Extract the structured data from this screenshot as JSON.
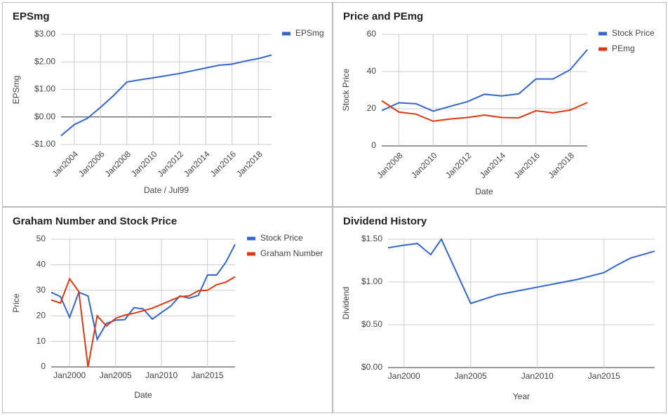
{
  "chart_data": [
    {
      "type": "line",
      "title": "EPSmg",
      "xlabel": "Date / Jul99",
      "ylabel": "EPSmg",
      "legend": "right",
      "grid": true,
      "x": [
        2003,
        2004,
        2005,
        2006,
        2007,
        2008,
        2009,
        2010,
        2011,
        2012,
        2013,
        2014,
        2015,
        2016,
        2017,
        2018,
        2019
      ],
      "xlim": [
        2003,
        2019
      ],
      "xticks": [
        {
          "value": 2004,
          "label": "Jan2004"
        },
        {
          "value": 2006,
          "label": "Jan2006"
        },
        {
          "value": 2008,
          "label": "Jan2008"
        },
        {
          "value": 2010,
          "label": "Jan2010"
        },
        {
          "value": 2012,
          "label": "Jan2012"
        },
        {
          "value": 2014,
          "label": "Jan2014"
        },
        {
          "value": 2016,
          "label": "Jan2016"
        },
        {
          "value": 2018,
          "label": "Jan2018"
        }
      ],
      "ylim": [
        -1,
        3
      ],
      "yticks": [
        {
          "value": -1,
          "label": "-$1.00"
        },
        {
          "value": 0,
          "label": "$0.00"
        },
        {
          "value": 1,
          "label": "$1.00"
        },
        {
          "value": 2,
          "label": "$2.00"
        },
        {
          "value": 3,
          "label": "$3.00"
        }
      ],
      "series": [
        {
          "name": "EPSmg",
          "color": "#3366cc",
          "values": [
            -0.68,
            -0.28,
            -0.05,
            0.35,
            0.78,
            1.27,
            1.35,
            1.42,
            1.5,
            1.58,
            1.68,
            1.78,
            1.88,
            1.92,
            2.03,
            2.12,
            2.25
          ]
        }
      ]
    },
    {
      "type": "line",
      "title": "Price and PEmg",
      "xlabel": "Date",
      "ylabel": "Stock Price",
      "legend": "right",
      "grid": true,
      "x": [
        2007,
        2008,
        2009,
        2010,
        2011,
        2012,
        2013,
        2014,
        2015,
        2016,
        2017,
        2018,
        2019
      ],
      "xlim": [
        2007,
        2019
      ],
      "xticks": [
        {
          "value": 2008,
          "label": "Jan2008"
        },
        {
          "value": 2010,
          "label": "Jan2010"
        },
        {
          "value": 2012,
          "label": "Jan2012"
        },
        {
          "value": 2014,
          "label": "Jan2014"
        },
        {
          "value": 2016,
          "label": "Jan2016"
        },
        {
          "value": 2018,
          "label": "Jan2018"
        }
      ],
      "ylim": [
        0,
        60
      ],
      "yticks": [
        0,
        20,
        40,
        60
      ],
      "series": [
        {
          "name": "Stock Price",
          "color": "#3366cc",
          "values": [
            19,
            23.2,
            22.7,
            18.7,
            21.3,
            23.8,
            27.8,
            26.9,
            28,
            36,
            36,
            41,
            51.8
          ]
        },
        {
          "name": "PEmg",
          "color": "#dc3912",
          "values": [
            24.3,
            18.2,
            17.1,
            13.3,
            14.5,
            15.3,
            16.6,
            15.3,
            15.1,
            18.9,
            17.8,
            19.3,
            23.3
          ]
        }
      ]
    },
    {
      "type": "line",
      "title": "Graham Number and Stock Price",
      "xlabel": "Date",
      "ylabel": "Price",
      "legend": "right",
      "grid": true,
      "x": [
        1998,
        1999,
        2000,
        2001,
        2002,
        2003,
        2004,
        2005,
        2006,
        2007,
        2008,
        2009,
        2010,
        2011,
        2012,
        2013,
        2014,
        2015,
        2016,
        2017,
        2018
      ],
      "xlim": [
        1998,
        2018
      ],
      "xticks": [
        {
          "value": 2000,
          "label": "Jan2000"
        },
        {
          "value": 2005,
          "label": "Jan2005"
        },
        {
          "value": 2010,
          "label": "Jan2010"
        },
        {
          "value": 2015,
          "label": "Jan2015"
        }
      ],
      "ylim": [
        0,
        50
      ],
      "yticks": [
        0,
        10,
        20,
        30,
        40,
        50
      ],
      "series": [
        {
          "name": "Stock Price",
          "color": "#3366cc",
          "values": [
            29.2,
            27.5,
            19.4,
            29.2,
            27.8,
            10.8,
            17,
            18.3,
            18.5,
            23.2,
            22.7,
            18.7,
            21.3,
            23.8,
            27.8,
            26.9,
            28,
            36,
            36,
            41,
            48
          ]
        },
        {
          "name": "Graham Number",
          "color": "#dc3912",
          "values": [
            26.2,
            25,
            34.5,
            29.5,
            0,
            20,
            16,
            19,
            20.3,
            21,
            22,
            23,
            24.5,
            26,
            27.5,
            27.8,
            29.8,
            30,
            32.2,
            33.2,
            35.3
          ]
        }
      ]
    },
    {
      "type": "line",
      "title": "Dividend History",
      "xlabel": "Year",
      "ylabel": "Dividend",
      "grid": true,
      "x": [
        1998.8,
        2000,
        2001,
        2002,
        2002.8,
        2005,
        2006,
        2007,
        2008,
        2009,
        2010,
        2011,
        2012,
        2013,
        2014,
        2015,
        2016,
        2017,
        2018.8
      ],
      "xlim": [
        1998.8,
        2018.8
      ],
      "xticks": [
        {
          "value": 2000,
          "label": "Jan2000"
        },
        {
          "value": 2005,
          "label": "Jan2005"
        },
        {
          "value": 2010,
          "label": "Jan2010"
        },
        {
          "value": 2015,
          "label": "Jan2015"
        }
      ],
      "ylim": [
        0,
        1.5
      ],
      "yticks": [
        {
          "value": 0,
          "label": "$0.00"
        },
        {
          "value": 0.5,
          "label": "$0.50"
        },
        {
          "value": 1,
          "label": "$1.00"
        },
        {
          "value": 1.5,
          "label": "$1.50"
        }
      ],
      "color": "#3366cc",
      "values": [
        1.4,
        1.43,
        1.45,
        1.32,
        1.5,
        0.75,
        0.8,
        0.85,
        0.88,
        0.91,
        0.94,
        0.97,
        1.0,
        1.03,
        1.07,
        1.11,
        1.2,
        1.28,
        1.36
      ]
    }
  ]
}
